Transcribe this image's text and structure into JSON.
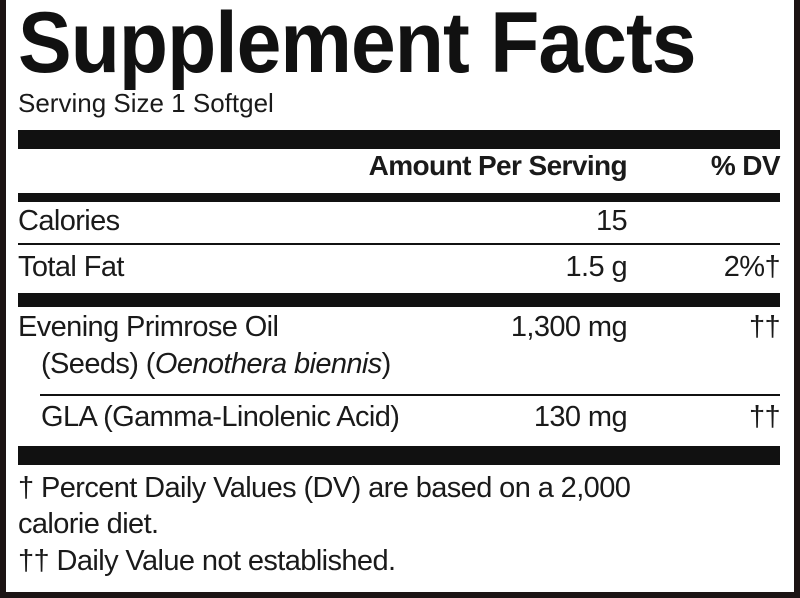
{
  "title": "Supplement Facts",
  "serving_size": "Serving Size 1 Softgel",
  "header": {
    "amount": "Amount Per Serving",
    "dv": "% DV"
  },
  "rows": [
    {
      "name": "Calories",
      "amount": "15",
      "dv": ""
    },
    {
      "name": "Total Fat",
      "amount": "1.5 g",
      "dv": "2%†"
    },
    {
      "name": "Evening Primrose Oil",
      "sub_prefix": "(Seeds) (",
      "sub_italic": "Oenothera biennis",
      "sub_suffix": ")",
      "amount": "1,300 mg",
      "dv": "††"
    },
    {
      "name": "GLA (Gamma-Linolenic Acid)",
      "amount": "130 mg",
      "dv": "††"
    }
  ],
  "footnotes": [
    "† Percent Daily Values (DV) are based on a 2,000",
    "calorie diet.",
    "†† Daily Value not established."
  ]
}
